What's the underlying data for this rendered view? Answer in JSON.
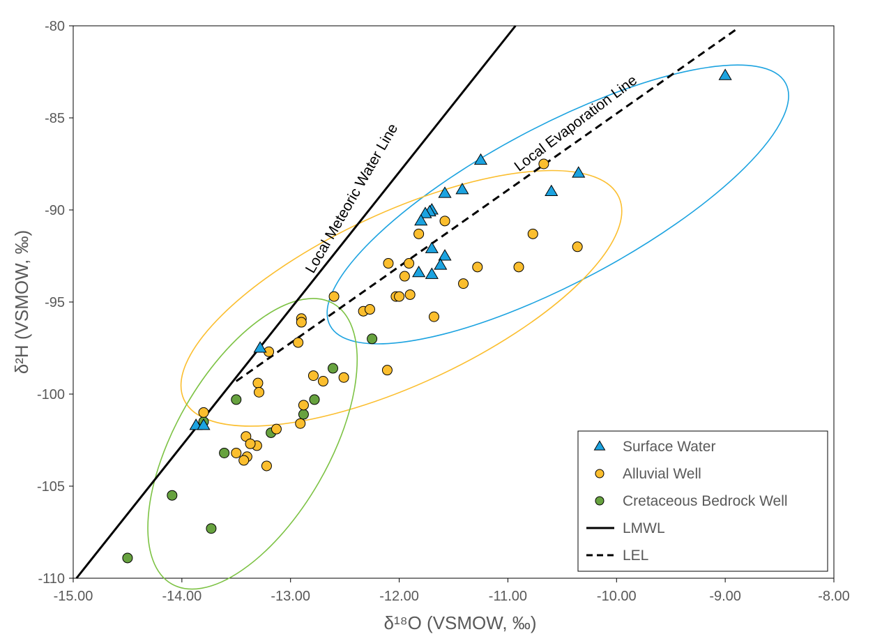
{
  "chart_data": {
    "type": "scatter",
    "xlabel": "δ¹⁸O (VSMOW, ‰)",
    "ylabel": "δ²H  (VSMOW, ‰)",
    "xlim": [
      -15,
      -8
    ],
    "ylim": [
      -110,
      -80
    ],
    "xticks": [
      -15,
      -14,
      -13,
      -12,
      -11,
      -10,
      -9,
      -8
    ],
    "yticks": [
      -110,
      -105,
      -100,
      -95,
      -90,
      -85,
      -80
    ],
    "xtick_labels": [
      "-15.00",
      "-14.00",
      "-13.00",
      "-12.00",
      "-11.00",
      "-10.00",
      "-9.00",
      "-8.00"
    ],
    "ytick_labels": [
      "-110",
      "-105",
      "-100",
      "-95",
      "-90",
      "-85",
      "-80"
    ],
    "grid": false,
    "legend_position": "bottom-right",
    "series": [
      {
        "name": "Surface Water",
        "marker": "triangle",
        "color": "#1ca3e0",
        "points": [
          [
            -9.0,
            -82.7
          ],
          [
            -11.25,
            -87.3
          ],
          [
            -10.35,
            -88.0
          ],
          [
            -10.6,
            -89.0
          ],
          [
            -11.42,
            -88.9
          ],
          [
            -11.58,
            -89.1
          ],
          [
            -11.7,
            -90.0
          ],
          [
            -11.72,
            -90.1
          ],
          [
            -11.76,
            -90.2
          ],
          [
            -11.8,
            -90.6
          ],
          [
            -11.7,
            -92.1
          ],
          [
            -11.58,
            -92.5
          ],
          [
            -11.62,
            -93.0
          ],
          [
            -11.82,
            -93.4
          ],
          [
            -11.7,
            -93.5
          ],
          [
            -13.28,
            -97.5
          ],
          [
            -13.87,
            -101.7
          ],
          [
            -13.8,
            -101.7
          ]
        ]
      },
      {
        "name": "Alluvial Well",
        "marker": "circle",
        "color": "#fbbe2e",
        "points": [
          [
            -10.67,
            -87.5
          ],
          [
            -11.58,
            -90.6
          ],
          [
            -11.82,
            -91.3
          ],
          [
            -10.77,
            -91.3
          ],
          [
            -10.36,
            -92.0
          ],
          [
            -12.1,
            -92.9
          ],
          [
            -11.91,
            -92.9
          ],
          [
            -11.28,
            -93.1
          ],
          [
            -10.9,
            -93.1
          ],
          [
            -11.95,
            -93.6
          ],
          [
            -11.41,
            -94.0
          ],
          [
            -12.03,
            -94.7
          ],
          [
            -12.0,
            -94.7
          ],
          [
            -11.9,
            -94.6
          ],
          [
            -12.6,
            -94.7
          ],
          [
            -11.68,
            -95.8
          ],
          [
            -12.33,
            -95.5
          ],
          [
            -12.27,
            -95.4
          ],
          [
            -12.9,
            -95.9
          ],
          [
            -12.9,
            -96.1
          ],
          [
            -12.93,
            -97.2
          ],
          [
            -13.2,
            -97.7
          ],
          [
            -12.11,
            -98.7
          ],
          [
            -12.79,
            -99.0
          ],
          [
            -12.7,
            -99.3
          ],
          [
            -12.51,
            -99.1
          ],
          [
            -13.3,
            -99.4
          ],
          [
            -13.29,
            -99.9
          ],
          [
            -12.88,
            -100.6
          ],
          [
            -13.8,
            -101.0
          ],
          [
            -12.91,
            -101.6
          ],
          [
            -13.13,
            -101.9
          ],
          [
            -13.41,
            -102.3
          ],
          [
            -13.31,
            -102.8
          ],
          [
            -13.37,
            -102.7
          ],
          [
            -13.5,
            -103.2
          ],
          [
            -13.4,
            -103.4
          ],
          [
            -13.43,
            -103.6
          ],
          [
            -13.22,
            -103.9
          ]
        ]
      },
      {
        "name": "Cretaceous Bedrock Well",
        "marker": "circle",
        "color": "#67a23f",
        "points": [
          [
            -12.25,
            -97.0
          ],
          [
            -12.61,
            -98.6
          ],
          [
            -13.5,
            -100.3
          ],
          [
            -12.78,
            -100.3
          ],
          [
            -12.88,
            -101.1
          ],
          [
            -13.8,
            -101.5
          ],
          [
            -13.18,
            -102.1
          ],
          [
            -13.61,
            -103.2
          ],
          [
            -14.09,
            -105.5
          ],
          [
            -13.73,
            -107.3
          ],
          [
            -14.5,
            -108.9
          ]
        ]
      },
      {
        "name": "LMWL",
        "type": "line",
        "style": "solid",
        "color": "#000000",
        "points": [
          [
            -14.97,
            -110.0
          ],
          [
            -10.93,
            -80.0
          ]
        ]
      },
      {
        "name": "LEL",
        "type": "line",
        "style": "dashed",
        "color": "#000000",
        "points": [
          [
            -13.5,
            -99.3
          ],
          [
            -8.9,
            -80.2
          ]
        ]
      }
    ],
    "annotations": [
      {
        "text": "Local Meteoric Water Line",
        "x": -12.4,
        "y": -89.5,
        "angle_deg": -60
      },
      {
        "text": "Local Evaporation Line",
        "x": -10.35,
        "y": -85.5,
        "angle_deg": -37
      }
    ],
    "ellipses": [
      {
        "group": "Surface Water",
        "color": "#1ca3e0",
        "cx": -10.54,
        "cy": -89.7,
        "rx_px": 370,
        "ry_px": 112,
        "angle_deg": -28
      },
      {
        "group": "Alluvial Well",
        "color": "#fbbe2e",
        "cx": -11.98,
        "cy": -94.8,
        "rx_px": 344,
        "ry_px": 123,
        "angle_deg": -25
      },
      {
        "group": "Cretaceous Bedrock Well",
        "color": "#7cc243",
        "cx": -13.35,
        "cy": -102.7,
        "rx_px": 232,
        "ry_px": 110,
        "angle_deg": -60
      }
    ]
  }
}
